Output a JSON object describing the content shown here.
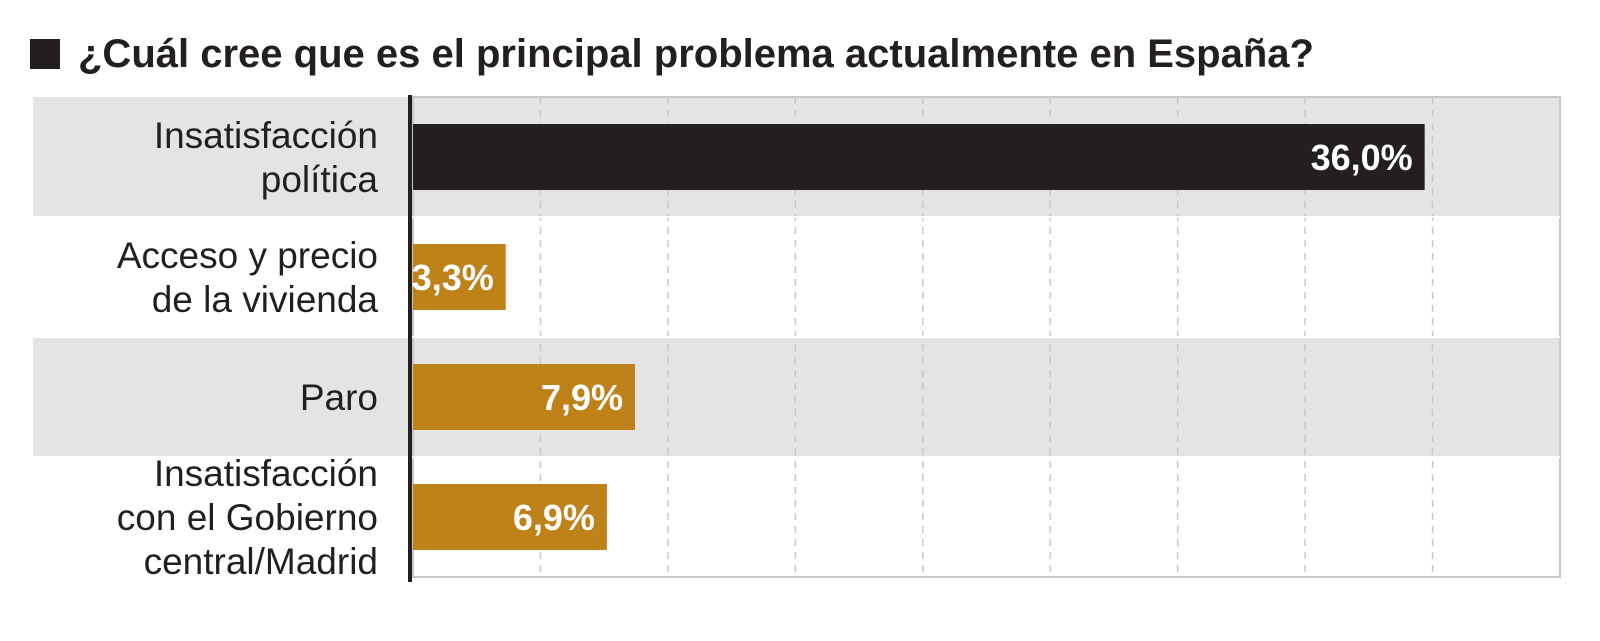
{
  "title": "¿Cuál cree que es el principal problema actualmente en España?",
  "colors": {
    "highlight_bar": "#231f20",
    "bar": "#bf8219",
    "band": "#e4e4e4",
    "grid": "#c8c8c8",
    "value_text": "#ffffff"
  },
  "chart_data": {
    "type": "bar",
    "orientation": "horizontal",
    "title": "¿Cuál cree que es el principal problema actualmente en España?",
    "categories": [
      [
        "Insatisfacción",
        "política"
      ],
      [
        "Acceso y precio",
        "de la vivienda"
      ],
      [
        "Paro"
      ],
      [
        "Insatisfacción",
        "con el Gobierno",
        "central/Madrid"
      ]
    ],
    "values": [
      36.0,
      3.3,
      7.9,
      6.9
    ],
    "value_labels": [
      "36,0%",
      "3,3%",
      "7,9%",
      "6,9%"
    ],
    "highlight_index": 0,
    "xlim": [
      0,
      40
    ],
    "grid": true,
    "xlabel": "",
    "ylabel": ""
  }
}
